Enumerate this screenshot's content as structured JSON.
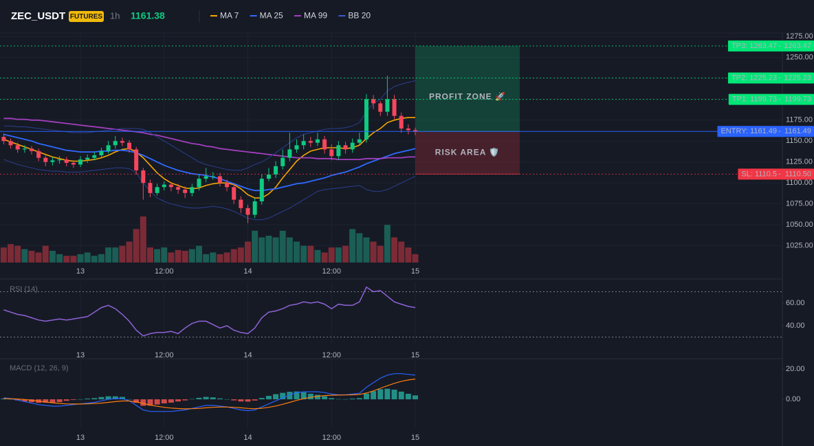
{
  "header": {
    "symbol": "ZEC_USDT",
    "badge": "FUTURES",
    "interval": "1h",
    "price": "1161.38"
  },
  "chart_data": [
    {
      "type": "candlestick",
      "xlim": [
        0,
        59
      ],
      "xticks": [
        {
          "value": 11,
          "label": "13"
        },
        {
          "value": 23,
          "label": "12:00"
        },
        {
          "value": 35,
          "label": "14"
        },
        {
          "value": 47,
          "label": "12:00"
        },
        {
          "value": 59,
          "label": "15"
        }
      ],
      "ylim": [
        1005,
        1279
      ],
      "yticks": [
        {
          "value": 1275,
          "label": "1275.00"
        },
        {
          "value": 1250,
          "label": "1250.00"
        },
        {
          "value": 1225,
          "label": "1225.00"
        },
        {
          "value": 1200,
          "label": "1200.00"
        },
        {
          "value": 1175,
          "label": "1175.00"
        },
        {
          "value": 1150,
          "label": "1150.00"
        },
        {
          "value": 1125,
          "label": "1125.00"
        },
        {
          "value": 1100,
          "label": "1100.00"
        },
        {
          "value": 1075,
          "label": "1075.00"
        },
        {
          "value": 1050,
          "label": "1050.00"
        },
        {
          "value": 1025,
          "label": "1025.00"
        }
      ],
      "grid": true,
      "up_color": "#0ecb81",
      "down_color": "#f6465d",
      "open": [
        1155,
        1150,
        1145,
        1140,
        1141,
        1138,
        1130,
        1125,
        1127,
        1128,
        1124,
        1122,
        1128,
        1130,
        1133,
        1138,
        1145,
        1150,
        1148,
        1140,
        1115,
        1100,
        1088,
        1095,
        1098,
        1095,
        1092,
        1088,
        1095,
        1105,
        1108,
        1108,
        1100,
        1095,
        1080,
        1070,
        1062,
        1078,
        1105,
        1110,
        1120,
        1130,
        1140,
        1145,
        1150,
        1148,
        1152,
        1140,
        1132,
        1145,
        1140,
        1148,
        1152,
        1200,
        1195,
        1185,
        1200,
        1180,
        1165,
        1163
      ],
      "high": [
        1159,
        1153,
        1148,
        1145,
        1144,
        1141,
        1133,
        1131,
        1132,
        1131,
        1127,
        1132,
        1134,
        1137,
        1142,
        1150,
        1156,
        1154,
        1151,
        1143,
        1118,
        1104,
        1099,
        1102,
        1101,
        1099,
        1096,
        1099,
        1110,
        1118,
        1113,
        1112,
        1104,
        1099,
        1084,
        1074,
        1082,
        1110,
        1118,
        1126,
        1140,
        1160,
        1152,
        1158,
        1155,
        1160,
        1156,
        1146,
        1150,
        1149,
        1153,
        1160,
        1206,
        1205,
        1198,
        1228,
        1205,
        1184,
        1170,
        1166
      ],
      "low": [
        1146,
        1141,
        1136,
        1136,
        1134,
        1126,
        1120,
        1121,
        1123,
        1120,
        1118,
        1119,
        1124,
        1127,
        1130,
        1135,
        1141,
        1144,
        1136,
        1110,
        1080,
        1083,
        1085,
        1091,
        1090,
        1087,
        1082,
        1084,
        1091,
        1101,
        1104,
        1096,
        1090,
        1075,
        1064,
        1052,
        1058,
        1074,
        1102,
        1106,
        1116,
        1126,
        1136,
        1140,
        1143,
        1144,
        1135,
        1127,
        1128,
        1135,
        1136,
        1145,
        1148,
        1188,
        1180,
        1180,
        1176,
        1160,
        1158,
        1157
      ],
      "close": [
        1150,
        1145,
        1140,
        1141,
        1138,
        1130,
        1125,
        1127,
        1128,
        1124,
        1122,
        1128,
        1130,
        1133,
        1138,
        1145,
        1150,
        1148,
        1140,
        1115,
        1100,
        1088,
        1095,
        1098,
        1095,
        1092,
        1088,
        1095,
        1105,
        1108,
        1108,
        1100,
        1095,
        1080,
        1070,
        1062,
        1078,
        1105,
        1110,
        1120,
        1130,
        1140,
        1145,
        1150,
        1148,
        1152,
        1140,
        1132,
        1145,
        1140,
        1148,
        1152,
        1200,
        1195,
        1185,
        1200,
        1180,
        1165,
        1163,
        1161
      ],
      "volume": {
        "up_color": "#1b5e55",
        "down_color": "#7b2b36",
        "values": [
          18,
          22,
          20,
          16,
          14,
          12,
          20,
          14,
          10,
          8,
          8,
          10,
          12,
          8,
          10,
          18,
          18,
          20,
          25,
          40,
          55,
          18,
          16,
          18,
          12,
          15,
          14,
          16,
          20,
          10,
          12,
          10,
          12,
          16,
          18,
          25,
          38,
          30,
          32,
          30,
          38,
          30,
          25,
          20,
          20,
          15,
          12,
          18,
          18,
          20,
          40,
          35,
          30,
          25,
          20,
          45,
          30,
          25,
          18,
          10
        ]
      },
      "series": [
        {
          "name": "MA 7",
          "color": "#f7a600",
          "width": 1.6,
          "values": [
            1152,
            1149,
            1146,
            1143,
            1140,
            1137,
            1134,
            1131,
            1129,
            1127,
            1126,
            1126,
            1127,
            1128,
            1130,
            1133,
            1137,
            1140,
            1141,
            1137,
            1130,
            1121,
            1112,
            1105,
            1100,
            1097,
            1094,
            1093,
            1094,
            1097,
            1099,
            1100,
            1100,
            1098,
            1093,
            1086,
            1082,
            1082,
            1087,
            1095,
            1106,
            1116,
            1126,
            1133,
            1138,
            1140,
            1142,
            1142,
            1142,
            1141,
            1142,
            1145,
            1153,
            1160,
            1165,
            1172,
            1175,
            1177,
            1178,
            1178
          ]
        },
        {
          "name": "MA 25",
          "color": "#2f6bff",
          "width": 1.8,
          "values": [
            1158,
            1156,
            1154,
            1152,
            1150,
            1147,
            1145,
            1143,
            1141,
            1139,
            1138,
            1137,
            1137,
            1137,
            1138,
            1138,
            1139,
            1139,
            1138,
            1136,
            1133,
            1129,
            1125,
            1121,
            1118,
            1115,
            1113,
            1111,
            1110,
            1109,
            1107,
            1105,
            1102,
            1099,
            1096,
            1093,
            1091,
            1091,
            1092,
            1093,
            1095,
            1097,
            1099,
            1100,
            1102,
            1104,
            1106,
            1109,
            1111,
            1113,
            1116,
            1119,
            1123,
            1126,
            1129,
            1132,
            1135,
            1137,
            1139,
            1141
          ]
        },
        {
          "name": "MA 99",
          "color": "#a33fbf",
          "width": 1.8,
          "values": [
            1177,
            1177,
            1176,
            1176,
            1175,
            1175,
            1174,
            1173,
            1172,
            1171,
            1170,
            1169,
            1168,
            1167,
            1166,
            1165,
            1164,
            1163,
            1162,
            1161,
            1160,
            1158,
            1157,
            1155,
            1153,
            1151,
            1149,
            1147,
            1146,
            1144,
            1143,
            1141,
            1140,
            1139,
            1138,
            1137,
            1136,
            1135,
            1134,
            1133,
            1132,
            1131,
            1130,
            1130,
            1130,
            1129,
            1129,
            1129,
            1128,
            1128,
            1128,
            1128,
            1129,
            1129,
            1129,
            1130,
            1130,
            1130,
            1131,
            1131
          ]
        },
        {
          "name": "BB 20",
          "color": "#2b3f8f",
          "width": 1,
          "values": [
            1168,
            1168,
            1167,
            1167,
            1166,
            1165,
            1164,
            1163,
            1162,
            1161,
            1160,
            1160,
            1160,
            1161,
            1162,
            1163,
            1164,
            1165,
            1165,
            1165,
            1164,
            1160,
            1155,
            1150,
            1145,
            1140,
            1135,
            1130,
            1125,
            1122,
            1120,
            1118,
            1116,
            1115,
            1115,
            1118,
            1122,
            1125,
            1130,
            1136,
            1142,
            1148,
            1154,
            1158,
            1160,
            1162,
            1164,
            1165,
            1165,
            1166,
            1168,
            1172,
            1185,
            1195,
            1200,
            1210,
            1215,
            1218,
            1220,
            1222
          ],
          "lower": [
            1128,
            1125,
            1122,
            1120,
            1118,
            1116,
            1115,
            1114,
            1114,
            1113,
            1113,
            1113,
            1114,
            1115,
            1116,
            1117,
            1118,
            1118,
            1117,
            1112,
            1100,
            1090,
            1082,
            1078,
            1075,
            1073,
            1071,
            1070,
            1070,
            1071,
            1072,
            1071,
            1069,
            1066,
            1062,
            1058,
            1056,
            1056,
            1058,
            1062,
            1066,
            1070,
            1075,
            1080,
            1085,
            1090,
            1092,
            1093,
            1094,
            1095,
            1096,
            1097,
            1092,
            1090,
            1090,
            1092,
            1096,
            1100,
            1104,
            1108
          ]
        }
      ],
      "levels": [
        {
          "label": "TP3: 1263.47",
          "value": 1263.47,
          "value_label": "1263.47",
          "color": "#00e676",
          "dashed": true
        },
        {
          "label": "TP2: 1225.23",
          "value": 1225.23,
          "value_label": "1225.23",
          "color": "#00e676",
          "dashed": true
        },
        {
          "label": "TP1: 1199.73",
          "value": 1199.73,
          "value_label": "1199.73",
          "color": "#00e676",
          "dashed": true
        },
        {
          "label": "ENTRY: 1161.49",
          "value": 1161.49,
          "value_label": "1161.49",
          "color": "#2962ff",
          "dashed": false
        },
        {
          "label": "SL: 1110.5",
          "value": 1110.5,
          "value_label": "1110.50",
          "color": "#f23645",
          "dashed": true
        }
      ],
      "zones": [
        {
          "label": "PROFIT ZONE 🚀",
          "top": 1263.47,
          "bottom": 1161.49,
          "color": "#0ecb81"
        },
        {
          "label": "RISK AREA 🛡️",
          "top": 1161.49,
          "bottom": 1110.5,
          "color": "#f23645"
        }
      ]
    },
    {
      "type": "line",
      "title": "RSI (14)",
      "ylim": [
        24.2,
        78.8
      ],
      "yticks": [
        {
          "value": 40,
          "label": "40.00"
        },
        {
          "value": 60,
          "label": "60.00"
        }
      ],
      "bands": [
        30,
        70
      ],
      "series": [
        {
          "color": "#8e63d6",
          "values": [
            54,
            52,
            50,
            49,
            47,
            45,
            44,
            45,
            46,
            45,
            46,
            47,
            48,
            52,
            56,
            58,
            55,
            50,
            44,
            36,
            31,
            33,
            34,
            34,
            35,
            33,
            38,
            42,
            44,
            44,
            41,
            38,
            40,
            36,
            34,
            33,
            38,
            47,
            52,
            53,
            55,
            58,
            59,
            61,
            60,
            61,
            59,
            55,
            59,
            58,
            58,
            61,
            74,
            70,
            71,
            66,
            61,
            59,
            57,
            56
          ]
        }
      ]
    },
    {
      "type": "macd",
      "title": "MACD (12, 26, 9)",
      "ylim": [
        -18.6,
        25.5
      ],
      "yticks": [
        {
          "value": 0,
          "label": "0.00"
        },
        {
          "value": 20,
          "label": "20.00"
        }
      ],
      "histogram": {
        "up_color": "#26a69a",
        "down_color": "#ef5350",
        "values": [
          0.5,
          0.1,
          -0.7,
          -1.4,
          -1.9,
          -2.3,
          -2.2,
          -2.2,
          -1.8,
          -1,
          -0.4,
          0.1,
          0.5,
          0.8,
          1.5,
          2,
          2,
          1.6,
          0.1,
          -2.3,
          -4.3,
          -4.2,
          -3.4,
          -2.7,
          -2.2,
          -1.4,
          -0.7,
          0.2,
          1,
          1.6,
          1.3,
          0.6,
          0.1,
          -0.7,
          -1.4,
          -1.5,
          -0.8,
          0.9,
          2.3,
          3.4,
          4.3,
          5,
          5.2,
          4.6,
          3.7,
          3,
          2,
          0.8,
          0.2,
          0.1,
          0.5,
          0.8,
          3.8,
          5.4,
          6.7,
          7,
          6.4,
          5.1,
          3.7,
          2.6
        ]
      },
      "series": [
        {
          "color": "#2962ff",
          "values": [
            1,
            0.5,
            -0.5,
            -1.5,
            -2.5,
            -3.5,
            -4,
            -4.5,
            -4.5,
            -4,
            -3.5,
            -3,
            -2.5,
            -2,
            -1,
            0,
            0.5,
            0.5,
            -1,
            -4,
            -7,
            -8,
            -8,
            -8,
            -8,
            -7.5,
            -7,
            -6,
            -5,
            -4,
            -4,
            -4.5,
            -5,
            -6,
            -7,
            -7.5,
            -7,
            -5,
            -3,
            -1,
            1,
            3,
            4.5,
            5,
            5,
            5,
            4.5,
            3.5,
            3,
            3,
            3.5,
            4,
            8,
            11,
            14,
            16,
            17,
            17,
            16.5,
            16
          ]
        },
        {
          "color": "#ff7f0e",
          "values": [
            0.5,
            0.4,
            0.2,
            -0.1,
            -0.6,
            -1.2,
            -1.8,
            -2.3,
            -2.7,
            -3,
            -3.1,
            -3.1,
            -3,
            -2.8,
            -2.5,
            -2,
            -1.5,
            -1.1,
            -1.1,
            -1.7,
            -2.7,
            -3.8,
            -4.6,
            -5.3,
            -5.8,
            -6.1,
            -6.3,
            -6.2,
            -6,
            -5.6,
            -5.3,
            -5.1,
            -5.1,
            -5.3,
            -5.6,
            -6,
            -6.2,
            -5.9,
            -5.3,
            -4.4,
            -3.3,
            -2,
            -0.7,
            0.4,
            1.3,
            2,
            2.5,
            2.7,
            2.8,
            2.9,
            3,
            3.2,
            4.2,
            5.6,
            7.3,
            9,
            10.6,
            11.9,
            12.8,
            13.4
          ]
        }
      ]
    }
  ]
}
